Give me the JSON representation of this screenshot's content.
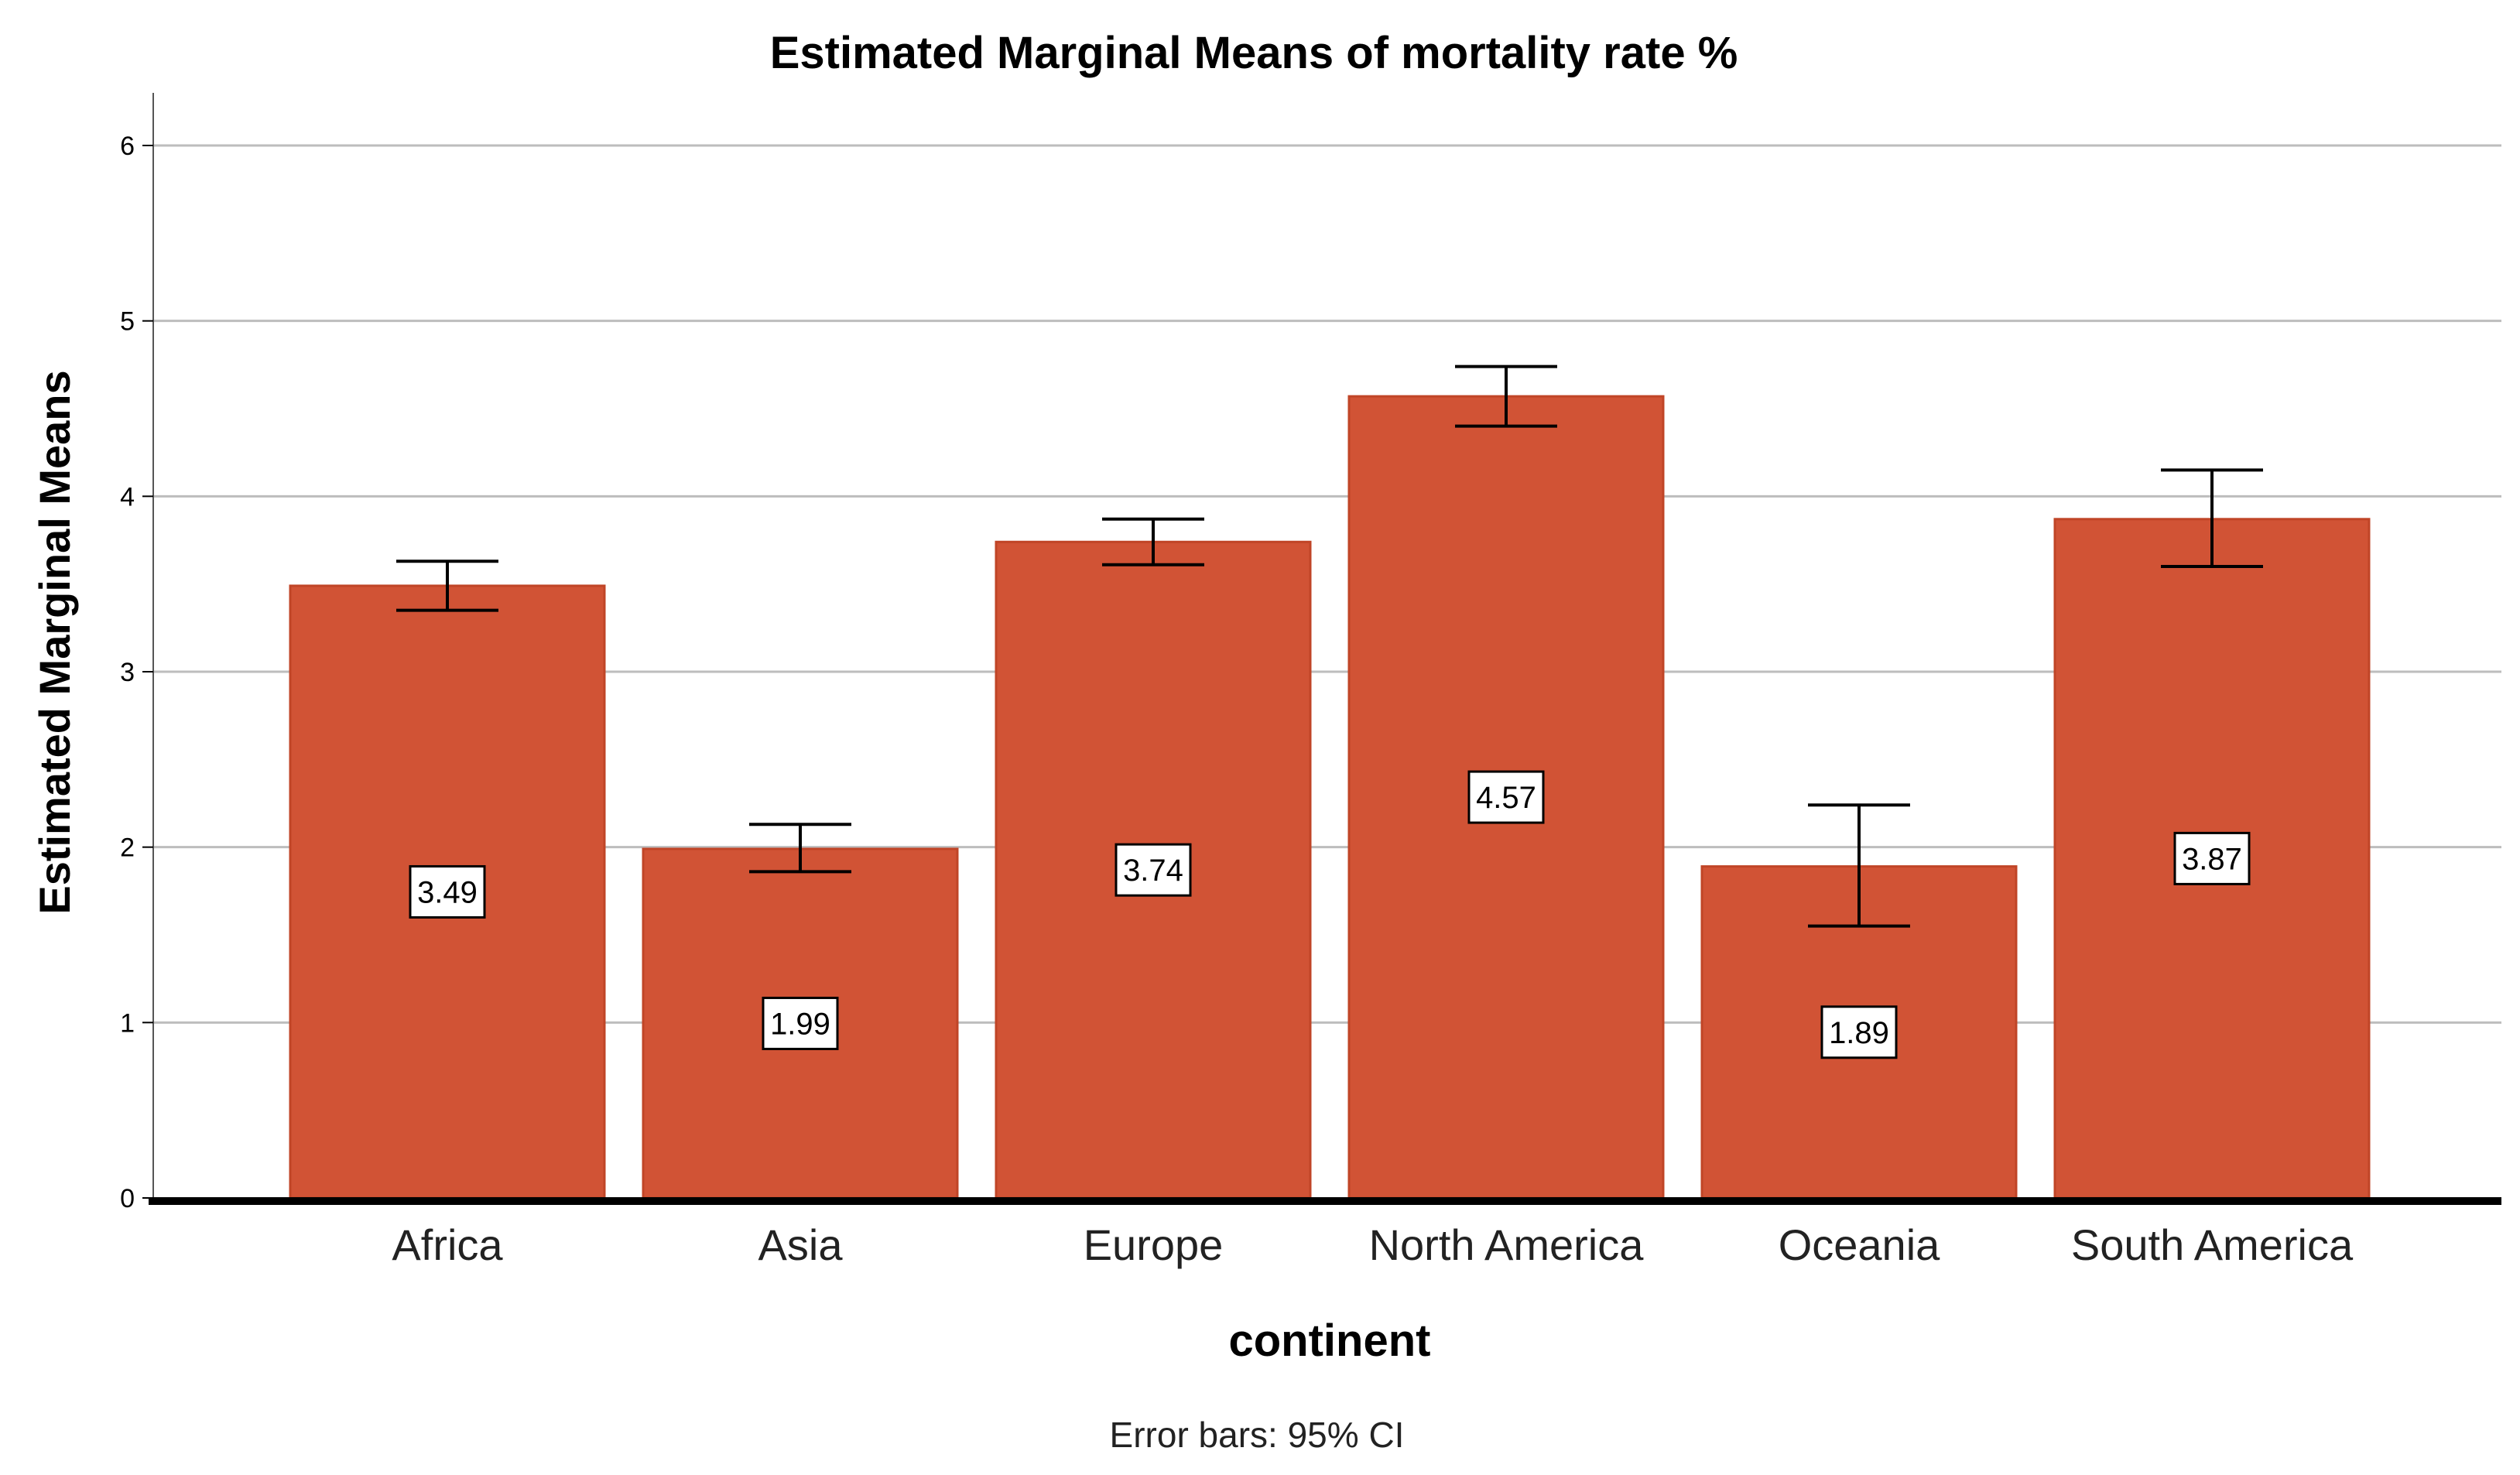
{
  "chart_data": {
    "type": "bar",
    "title": "Estimated Marginal Means of mortality rate %",
    "xlabel": "continent",
    "ylabel": "Estimated Marginal Means",
    "footnote": "Error bars: 95% CI",
    "categories": [
      "Africa",
      "Asia",
      "Europe",
      "North America",
      "Oceania",
      "South America"
    ],
    "values": [
      3.49,
      1.99,
      3.74,
      4.57,
      1.89,
      3.87
    ],
    "data_labels": [
      "3.49",
      "1.99",
      "3.74",
      "4.57",
      "1.89",
      "3.87"
    ],
    "ci_lower": [
      3.35,
      1.86,
      3.61,
      4.4,
      1.55,
      3.6
    ],
    "ci_upper": [
      3.63,
      2.13,
      3.87,
      4.74,
      2.24,
      4.15
    ],
    "ylim": [
      0,
      6.3
    ],
    "yticks": [
      "0",
      "1",
      "2",
      "3",
      "4",
      "5",
      "6"
    ],
    "grid": true,
    "colors": {
      "bar": "#d15335",
      "bar_edge": "#c04527",
      "grid": "#bdbdbd",
      "axis": "#000000"
    }
  }
}
